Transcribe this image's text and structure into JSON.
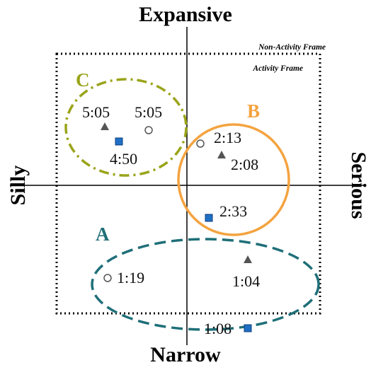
{
  "axes": {
    "top": "Expansive",
    "bottom": "Narrow",
    "left": "Silly",
    "right": "Serious"
  },
  "frames": {
    "outer": "Non-Activity Frame",
    "inner": "Activity Frame"
  },
  "groups": [
    {
      "id": "A",
      "label": "A",
      "color": "#1f6f78",
      "style": "dashed"
    },
    {
      "id": "B",
      "label": "B",
      "color": "#f4a340",
      "style": "solid"
    },
    {
      "id": "C",
      "label": "C",
      "color": "#9aa41a",
      "style": "dash-dot"
    }
  ],
  "markers": [
    {
      "shape": "triangle",
      "group": "C",
      "label": "5:05"
    },
    {
      "shape": "circle",
      "group": "C",
      "label": "5:05"
    },
    {
      "shape": "square",
      "group": "C",
      "label": "4:50"
    },
    {
      "shape": "circle",
      "group": "B",
      "label": "2:13"
    },
    {
      "shape": "triangle",
      "group": "B",
      "label": "2:08"
    },
    {
      "shape": "square",
      "group": "B",
      "label": "2:33"
    },
    {
      "shape": "circle",
      "group": "A",
      "label": "1:19"
    },
    {
      "shape": "triangle",
      "group": "A",
      "label": "1:04"
    },
    {
      "shape": "square",
      "group": "A",
      "label": "1:08"
    }
  ],
  "colors": {
    "square": "#1f6fc5",
    "triangle": "#555555",
    "circle": "#ffffff",
    "axis": "#000000"
  }
}
